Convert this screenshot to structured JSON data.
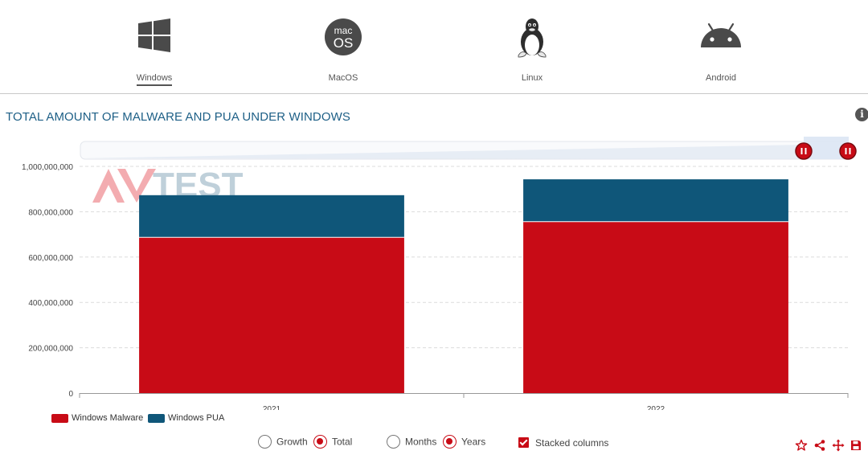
{
  "os_tabs": [
    {
      "label": "Windows",
      "icon": "windows-icon",
      "active": true
    },
    {
      "label": "MacOS",
      "icon": "macos-icon",
      "active": false
    },
    {
      "label": "Linux",
      "icon": "linux-icon",
      "active": false
    },
    {
      "label": "Android",
      "icon": "android-icon",
      "active": false
    }
  ],
  "macos_icon_text": {
    "top": "mac",
    "bottom": "OS"
  },
  "watermark": "AV TEST",
  "colors": {
    "malware": "#c80b16",
    "pua": "#0f5679",
    "title": "#1d5f86",
    "accent": "#c80b16"
  },
  "chart_data": {
    "type": "bar",
    "stacked": true,
    "title": "TOTAL AMOUNT OF MALWARE AND PUA UNDER WINDOWS",
    "categories": [
      "2021",
      "2022"
    ],
    "series": [
      {
        "name": "Windows Malware",
        "values": [
          687000000,
          756000000
        ],
        "color": "#c80b16"
      },
      {
        "name": "Windows PUA",
        "values": [
          186000000,
          187000000
        ],
        "color": "#0f5679"
      }
    ],
    "y_ticks": [
      "0",
      "200,000,000",
      "400,000,000",
      "600,000,000",
      "800,000,000",
      "1,000,000,000"
    ],
    "ylim": [
      0,
      1000000000
    ],
    "grid": true,
    "legend_position": "bottom-left",
    "navigator": true
  },
  "controls": {
    "mode": [
      {
        "label": "Growth",
        "checked": false
      },
      {
        "label": "Total",
        "checked": true
      }
    ],
    "period": [
      {
        "label": "Months",
        "checked": false
      },
      {
        "label": "Years",
        "checked": true
      }
    ],
    "stacked_label": "Stacked columns",
    "stacked_checked": true
  },
  "toolbar": [
    "star-icon",
    "share-icon",
    "move-icon",
    "save-icon"
  ]
}
